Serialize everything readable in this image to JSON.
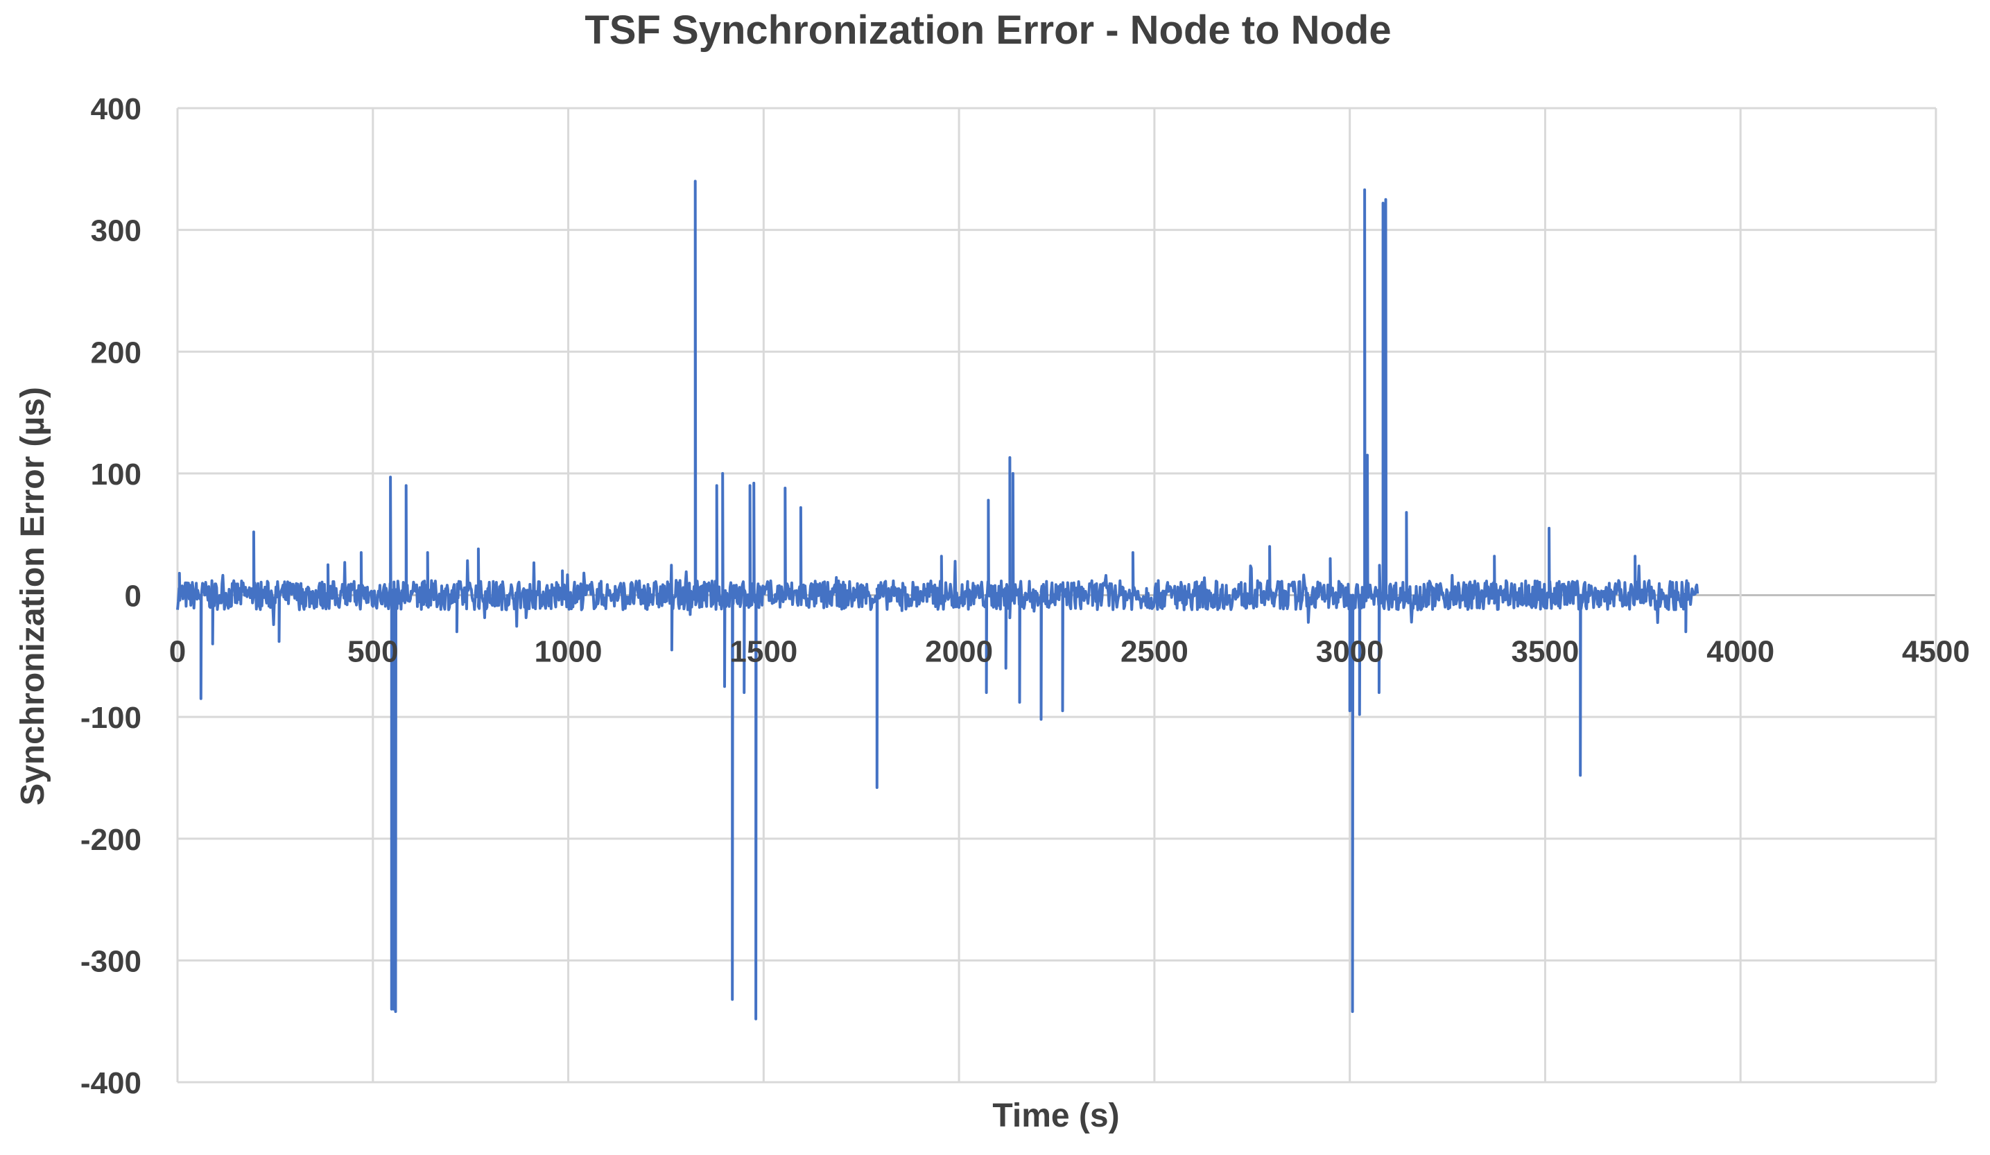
{
  "chart_data": {
    "type": "line",
    "title": "TSF Synchronization Error - Node to Node",
    "xlabel": "Time (s)",
    "ylabel": "Synchronization Error (µs)",
    "xlim": [
      0,
      4500
    ],
    "ylim": [
      -400,
      400
    ],
    "x_ticks": [
      0,
      500,
      1000,
      1500,
      2000,
      2500,
      3000,
      3500,
      4000,
      4500
    ],
    "y_ticks": [
      400,
      300,
      200,
      100,
      0,
      -100,
      -200,
      -300,
      -400
    ],
    "grid": true,
    "legend": "none",
    "series_color": "#4472c4",
    "series": [
      {
        "x_range": [
          0,
          3890
        ],
        "baseline_noise_amplitude": 12,
        "spikes": [
          {
            "x": 5,
            "y": 18
          },
          {
            "x": 60,
            "y": -85
          },
          {
            "x": 90,
            "y": -40
          },
          {
            "x": 195,
            "y": 52
          },
          {
            "x": 260,
            "y": -38
          },
          {
            "x": 385,
            "y": 25
          },
          {
            "x": 470,
            "y": 35
          },
          {
            "x": 545,
            "y": 97
          },
          {
            "x": 548,
            "y": -340
          },
          {
            "x": 553,
            "y": -340
          },
          {
            "x": 558,
            "y": -342
          },
          {
            "x": 585,
            "y": 90
          },
          {
            "x": 640,
            "y": 35
          },
          {
            "x": 715,
            "y": -30
          },
          {
            "x": 770,
            "y": 38
          },
          {
            "x": 985,
            "y": 20
          },
          {
            "x": 1265,
            "y": -45
          },
          {
            "x": 1325,
            "y": 340
          },
          {
            "x": 1380,
            "y": 90
          },
          {
            "x": 1395,
            "y": 100
          },
          {
            "x": 1400,
            "y": -75
          },
          {
            "x": 1420,
            "y": -332
          },
          {
            "x": 1450,
            "y": -80
          },
          {
            "x": 1465,
            "y": 90
          },
          {
            "x": 1475,
            "y": 92
          },
          {
            "x": 1480,
            "y": -348
          },
          {
            "x": 1555,
            "y": 88
          },
          {
            "x": 1595,
            "y": 72
          },
          {
            "x": 1790,
            "y": -158
          },
          {
            "x": 1955,
            "y": 32
          },
          {
            "x": 2070,
            "y": -80
          },
          {
            "x": 2075,
            "y": 78
          },
          {
            "x": 2130,
            "y": 113
          },
          {
            "x": 2138,
            "y": 100
          },
          {
            "x": 2120,
            "y": -60
          },
          {
            "x": 2155,
            "y": -88
          },
          {
            "x": 2210,
            "y": -102
          },
          {
            "x": 2265,
            "y": -95
          },
          {
            "x": 2445,
            "y": 35
          },
          {
            "x": 2795,
            "y": 40
          },
          {
            "x": 2950,
            "y": 30
          },
          {
            "x": 3000,
            "y": -95
          },
          {
            "x": 3007,
            "y": -342
          },
          {
            "x": 3025,
            "y": -98
          },
          {
            "x": 3038,
            "y": 333
          },
          {
            "x": 3045,
            "y": 115
          },
          {
            "x": 3075,
            "y": -80
          },
          {
            "x": 3085,
            "y": 322
          },
          {
            "x": 3092,
            "y": 325
          },
          {
            "x": 3145,
            "y": 68
          },
          {
            "x": 3370,
            "y": 32
          },
          {
            "x": 3510,
            "y": 55
          },
          {
            "x": 3590,
            "y": -148
          },
          {
            "x": 3730,
            "y": 32
          },
          {
            "x": 3860,
            "y": -30
          }
        ]
      }
    ]
  }
}
